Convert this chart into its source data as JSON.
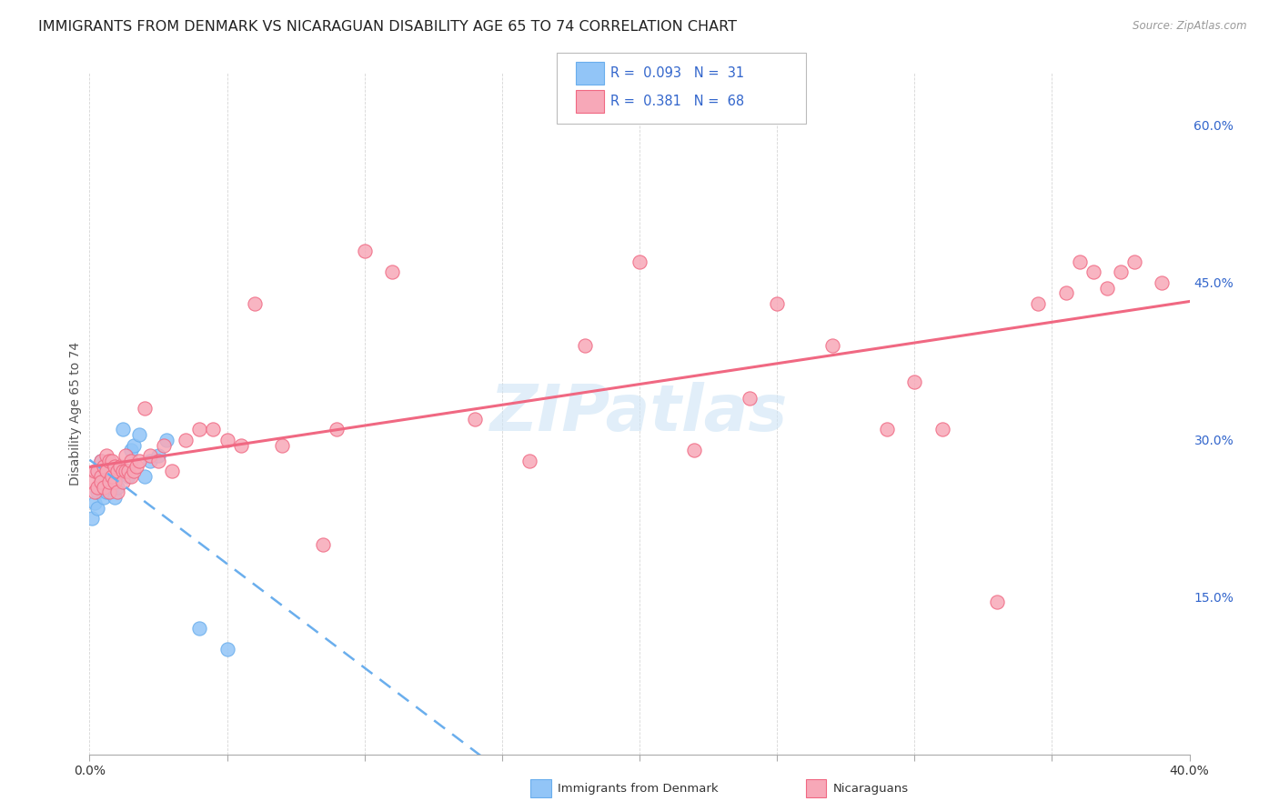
{
  "title": "IMMIGRANTS FROM DENMARK VS NICARAGUAN DISABILITY AGE 65 TO 74 CORRELATION CHART",
  "source": "Source: ZipAtlas.com",
  "ylabel": "Disability Age 65 to 74",
  "xmin": 0.0,
  "xmax": 0.4,
  "ymin": 0.0,
  "ymax": 0.65,
  "yticks_right": [
    0.15,
    0.3,
    0.45,
    0.6
  ],
  "ytick_right_labels": [
    "15.0%",
    "30.0%",
    "45.0%",
    "60.0%"
  ],
  "xtick_positions": [
    0.0,
    0.05,
    0.1,
    0.15,
    0.2,
    0.25,
    0.3,
    0.35,
    0.4
  ],
  "color_denmark": "#92c5f7",
  "color_nicaragua": "#f7a8b8",
  "color_denmark_line": "#6aaeed",
  "color_nicaragua_line": "#f06882",
  "legend_text_color": "#3366cc",
  "watermark": "ZIPatlas",
  "watermark_color": "#cde4f5",
  "watermark_alpha": 0.6,
  "watermark_fontsize": 52,
  "grid_color": "#cccccc",
  "grid_style": "--",
  "background_color": "#ffffff",
  "title_fontsize": 11.5,
  "axis_label_fontsize": 10,
  "tick_fontsize": 10,
  "denmark_x": [
    0.001,
    0.002,
    0.003,
    0.003,
    0.003,
    0.004,
    0.004,
    0.005,
    0.005,
    0.006,
    0.006,
    0.007,
    0.007,
    0.008,
    0.008,
    0.009,
    0.01,
    0.01,
    0.011,
    0.012,
    0.013,
    0.014,
    0.015,
    0.016,
    0.018,
    0.02,
    0.022,
    0.025,
    0.028,
    0.04,
    0.05
  ],
  "denmark_y": [
    0.225,
    0.24,
    0.27,
    0.25,
    0.235,
    0.26,
    0.28,
    0.255,
    0.245,
    0.265,
    0.25,
    0.27,
    0.26,
    0.255,
    0.265,
    0.245,
    0.265,
    0.255,
    0.27,
    0.31,
    0.27,
    0.265,
    0.29,
    0.295,
    0.305,
    0.265,
    0.28,
    0.285,
    0.3,
    0.12,
    0.1
  ],
  "nicaragua_x": [
    0.001,
    0.002,
    0.002,
    0.003,
    0.003,
    0.004,
    0.004,
    0.004,
    0.005,
    0.005,
    0.006,
    0.006,
    0.007,
    0.007,
    0.007,
    0.008,
    0.008,
    0.009,
    0.009,
    0.01,
    0.01,
    0.011,
    0.012,
    0.012,
    0.013,
    0.013,
    0.014,
    0.015,
    0.015,
    0.016,
    0.017,
    0.018,
    0.02,
    0.022,
    0.025,
    0.027,
    0.03,
    0.035,
    0.04,
    0.045,
    0.05,
    0.055,
    0.06,
    0.07,
    0.085,
    0.09,
    0.1,
    0.11,
    0.14,
    0.16,
    0.18,
    0.2,
    0.22,
    0.24,
    0.25,
    0.27,
    0.29,
    0.3,
    0.31,
    0.33,
    0.345,
    0.355,
    0.36,
    0.365,
    0.37,
    0.375,
    0.38,
    0.39
  ],
  "nicaragua_y": [
    0.26,
    0.27,
    0.25,
    0.27,
    0.255,
    0.265,
    0.28,
    0.26,
    0.275,
    0.255,
    0.27,
    0.285,
    0.25,
    0.26,
    0.28,
    0.265,
    0.28,
    0.26,
    0.275,
    0.27,
    0.25,
    0.275,
    0.27,
    0.26,
    0.27,
    0.285,
    0.27,
    0.265,
    0.28,
    0.27,
    0.275,
    0.28,
    0.33,
    0.285,
    0.28,
    0.295,
    0.27,
    0.3,
    0.31,
    0.31,
    0.3,
    0.295,
    0.43,
    0.295,
    0.2,
    0.31,
    0.48,
    0.46,
    0.32,
    0.28,
    0.39,
    0.47,
    0.29,
    0.34,
    0.43,
    0.39,
    0.31,
    0.355,
    0.31,
    0.145,
    0.43,
    0.44,
    0.47,
    0.46,
    0.445,
    0.46,
    0.47,
    0.45
  ],
  "legend_r1_color": "#3366cc",
  "legend_r2_color": "#3366cc"
}
